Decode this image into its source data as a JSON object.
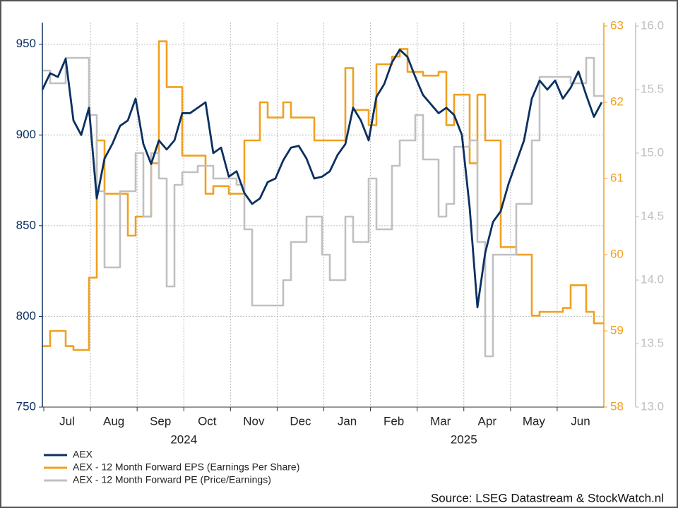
{
  "chart_data": {
    "type": "line",
    "source": "Source: LSEG Datastream & StockWatch.nl",
    "months": [
      "Jul",
      "Aug",
      "Sep",
      "Oct",
      "Nov",
      "Dec",
      "Jan",
      "Feb",
      "Mar",
      "Apr",
      "May",
      "Jun"
    ],
    "years": [
      "2024",
      "2025"
    ],
    "ylim": [
      750,
      960
    ],
    "yticks": [
      750,
      800,
      850,
      900,
      950
    ],
    "y2lim": [
      58,
      63
    ],
    "y2ticks": [
      58,
      59,
      60,
      61,
      62,
      63
    ],
    "y3lim": [
      13,
      16
    ],
    "y3ticks": [
      {
        "value": 13,
        "label": "13.0"
      },
      {
        "value": 13.5,
        "label": "13.5"
      },
      {
        "value": 14,
        "label": "14.0"
      },
      {
        "value": 14.5,
        "label": "14.5"
      },
      {
        "value": 15,
        "label": "15.0"
      },
      {
        "value": 15.5,
        "label": "15.5"
      },
      {
        "value": 16,
        "label": "16.0"
      }
    ],
    "grid": true,
    "series": [
      {
        "name": "AEX",
        "color": "#0b3060",
        "axis": "y",
        "values": [
          925,
          934,
          932,
          942,
          908,
          900,
          915,
          865,
          887,
          895,
          905,
          908,
          920,
          895,
          884,
          897,
          892,
          897,
          912,
          912,
          915,
          918,
          890,
          893,
          877,
          880,
          868,
          862,
          865,
          874,
          876,
          886,
          893,
          894,
          887,
          876,
          877,
          880,
          889,
          895,
          915,
          908,
          897,
          921,
          928,
          940,
          947,
          943,
          932,
          922,
          917,
          912,
          915,
          911,
          900,
          860,
          805,
          835,
          852,
          858,
          873,
          885,
          897,
          920,
          930,
          925,
          930,
          920,
          926,
          935,
          922,
          910,
          918
        ]
      },
      {
        "name": "AEX - 12 Month Forward EPS (Earnings Per Share)",
        "color": "#f0a020",
        "axis": "y2",
        "step": true,
        "values": [
          58.8,
          59.0,
          59.0,
          58.8,
          58.75,
          58.75,
          59.7,
          61.5,
          60.8,
          60.8,
          60.8,
          60.25,
          60.5,
          60.5,
          61.2,
          62.8,
          62.2,
          62.2,
          61.3,
          61.3,
          61.3,
          60.8,
          60.9,
          60.9,
          60.8,
          60.8,
          61.5,
          61.5,
          62.0,
          61.8,
          61.8,
          62.0,
          61.8,
          61.8,
          61.8,
          61.5,
          61.5,
          61.5,
          61.5,
          62.45,
          61.9,
          61.9,
          61.7,
          62.5,
          62.5,
          62.6,
          62.7,
          62.4,
          62.4,
          62.35,
          62.35,
          62.4,
          61.7,
          62.1,
          62.1,
          61.2,
          62.1,
          61.5,
          61.5,
          60.1,
          60.1,
          60.0,
          60.0,
          59.2,
          59.25,
          59.25,
          59.25,
          59.3,
          59.6,
          59.6,
          59.25,
          59.1,
          59.1
        ]
      },
      {
        "name": "AEX - 12 Month Forward PE (Price/Earnings)",
        "color": "#c0c0c0",
        "axis": "y3",
        "step": true,
        "values": [
          15.65,
          15.55,
          15.55,
          15.75,
          15.75,
          15.75,
          15.3,
          14.7,
          14.1,
          14.1,
          14.7,
          14.7,
          15.0,
          14.5,
          15.0,
          14.8,
          13.95,
          14.75,
          14.85,
          14.85,
          14.9,
          14.9,
          14.8,
          14.8,
          14.8,
          14.75,
          14.4,
          13.8,
          13.8,
          13.8,
          13.8,
          14.0,
          14.3,
          14.3,
          14.5,
          14.5,
          14.2,
          14.0,
          14.0,
          14.5,
          14.3,
          14.3,
          14.8,
          14.4,
          14.4,
          14.9,
          15.1,
          15.1,
          15.3,
          14.95,
          14.95,
          14.5,
          14.6,
          15.05,
          15.05,
          15.1,
          14.3,
          13.4,
          14.2,
          14.2,
          14.2,
          14.6,
          14.6,
          15.1,
          15.6,
          15.6,
          15.6,
          15.6,
          15.55,
          15.55,
          15.75,
          15.45,
          15.45
        ]
      }
    ]
  }
}
